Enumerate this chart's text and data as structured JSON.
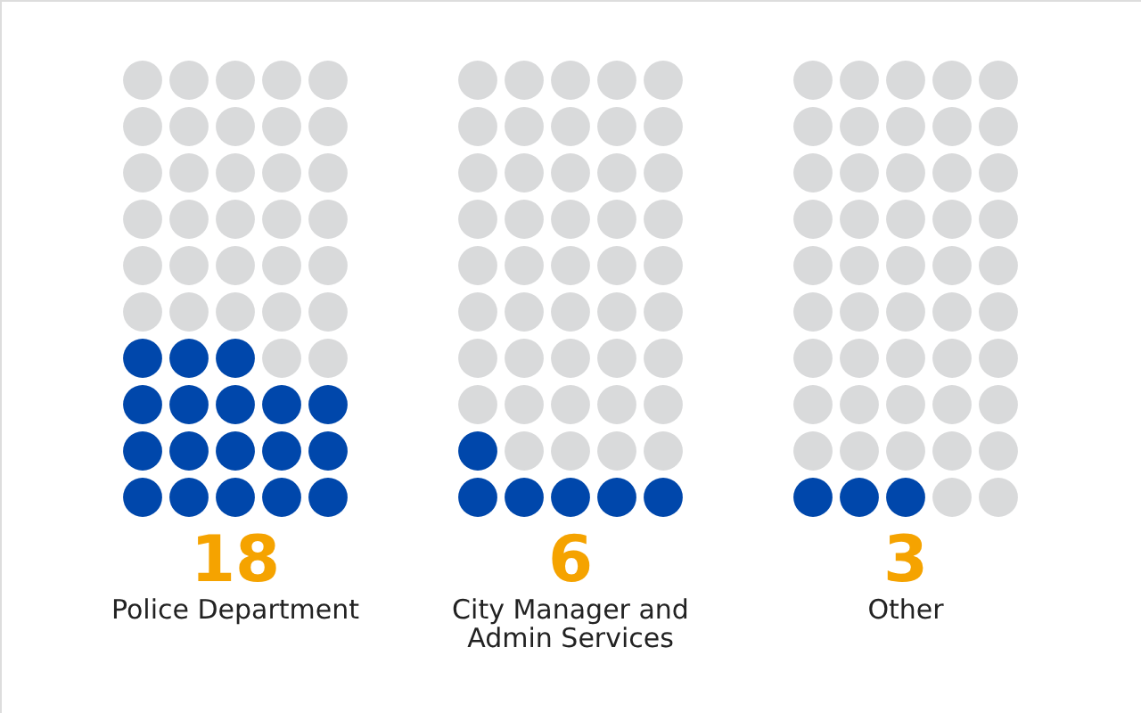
{
  "chart_data": {
    "type": "other",
    "categories": [
      "Police Department",
      "City Manager and Admin Services",
      "Other"
    ],
    "values": [
      18,
      6,
      3
    ],
    "colors": [
      "#0047ab",
      "#0047ab",
      "#0047ab"
    ],
    "data_labels": true
  }
}
